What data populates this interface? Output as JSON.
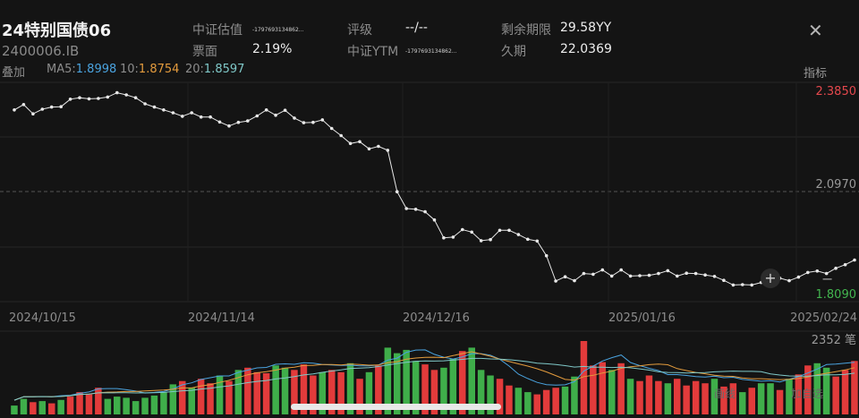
{
  "header": {
    "title": "24特别国债06",
    "code": "2400006.IB",
    "close_icon": "close-icon",
    "fields": [
      {
        "label": "中证估值",
        "value": "-1797693134862..."
      },
      {
        "label": "评级",
        "value": "--/--"
      },
      {
        "label": "剩余期限",
        "value": "29.58YY"
      },
      {
        "label": "票面",
        "value": "2.19%"
      },
      {
        "label": "中证YTM",
        "value": "-1797693134862..."
      },
      {
        "label": "久期",
        "value": "22.0369"
      }
    ]
  },
  "ma_bar": {
    "overlay_label": "叠加",
    "ma5_label": "MA5:",
    "ma5_value": "1.8998",
    "ma10_label": "10:",
    "ma10_value": "1.8754",
    "ma20_label": "20:",
    "ma20_value": "1.8597",
    "indicator_label": "指标"
  },
  "chart_data": {
    "type": "line",
    "ylim": [
      1.809,
      2.385
    ],
    "y_tick_labels": [
      "2.3850",
      "2.0970",
      "1.8090"
    ],
    "x_tick_labels": [
      "2024/10/15",
      "2024/11/14",
      "2024/12/16",
      "2025/01/16",
      "2025/02/24"
    ],
    "values": [
      2.328,
      2.343,
      2.317,
      2.33,
      2.336,
      2.337,
      2.358,
      2.362,
      2.359,
      2.36,
      2.364,
      2.376,
      2.37,
      2.362,
      2.345,
      2.336,
      2.328,
      2.32,
      2.31,
      2.32,
      2.308,
      2.308,
      2.294,
      2.283,
      2.293,
      2.297,
      2.311,
      2.328,
      2.313,
      2.327,
      2.305,
      2.292,
      2.293,
      2.3,
      2.276,
      2.256,
      2.234,
      2.239,
      2.219,
      2.226,
      2.215,
      2.099,
      2.052,
      2.05,
      2.043,
      2.02,
      1.97,
      1.972,
      1.993,
      1.986,
      1.962,
      1.965,
      1.991,
      1.991,
      1.979,
      1.966,
      1.961,
      1.92,
      1.849,
      1.861,
      1.85,
      1.87,
      1.868,
      1.88,
      1.863,
      1.88,
      1.863,
      1.864,
      1.865,
      1.87,
      1.878,
      1.863,
      1.871,
      1.87,
      1.866,
      1.862,
      1.851,
      1.838,
      1.839,
      1.838,
      1.845,
      1.852,
      1.857,
      1.85,
      1.86,
      1.873,
      1.877,
      1.87,
      1.885,
      1.895,
      1.908
    ],
    "volume": {
      "label": "2352 笔",
      "bars": [
        {
          "v": 8,
          "c": "g"
        },
        {
          "v": 14,
          "c": "g"
        },
        {
          "v": 11,
          "c": "r"
        },
        {
          "v": 12,
          "c": "g"
        },
        {
          "v": 10,
          "c": "r"
        },
        {
          "v": 13,
          "c": "g"
        },
        {
          "v": 16,
          "c": "r"
        },
        {
          "v": 20,
          "c": "r"
        },
        {
          "v": 18,
          "c": "r"
        },
        {
          "v": 24,
          "c": "r"
        },
        {
          "v": 14,
          "c": "g"
        },
        {
          "v": 16,
          "c": "g"
        },
        {
          "v": 15,
          "c": "g"
        },
        {
          "v": 12,
          "c": "g"
        },
        {
          "v": 15,
          "c": "g"
        },
        {
          "v": 17,
          "c": "g"
        },
        {
          "v": 20,
          "c": "g"
        },
        {
          "v": 27,
          "c": "g"
        },
        {
          "v": 30,
          "c": "r"
        },
        {
          "v": 24,
          "c": "g"
        },
        {
          "v": 32,
          "c": "r"
        },
        {
          "v": 28,
          "c": "r"
        },
        {
          "v": 35,
          "c": "g"
        },
        {
          "v": 30,
          "c": "r"
        },
        {
          "v": 40,
          "c": "g"
        },
        {
          "v": 42,
          "c": "r"
        },
        {
          "v": 38,
          "c": "r"
        },
        {
          "v": 37,
          "c": "r"
        },
        {
          "v": 44,
          "c": "g"
        },
        {
          "v": 42,
          "c": "g"
        },
        {
          "v": 40,
          "c": "r"
        },
        {
          "v": 45,
          "c": "r"
        },
        {
          "v": 35,
          "c": "r"
        },
        {
          "v": 38,
          "c": "g"
        },
        {
          "v": 40,
          "c": "r"
        },
        {
          "v": 38,
          "c": "r"
        },
        {
          "v": 46,
          "c": "g"
        },
        {
          "v": 32,
          "c": "r"
        },
        {
          "v": 38,
          "c": "g"
        },
        {
          "v": 44,
          "c": "r"
        },
        {
          "v": 60,
          "c": "g"
        },
        {
          "v": 55,
          "c": "g"
        },
        {
          "v": 58,
          "c": "g"
        },
        {
          "v": 48,
          "c": "g"
        },
        {
          "v": 45,
          "c": "r"
        },
        {
          "v": 40,
          "c": "r"
        },
        {
          "v": 42,
          "c": "g"
        },
        {
          "v": 50,
          "c": "g"
        },
        {
          "v": 57,
          "c": "r"
        },
        {
          "v": 60,
          "c": "g"
        },
        {
          "v": 40,
          "c": "g"
        },
        {
          "v": 35,
          "c": "g"
        },
        {
          "v": 32,
          "c": "r"
        },
        {
          "v": 26,
          "c": "r"
        },
        {
          "v": 24,
          "c": "g"
        },
        {
          "v": 20,
          "c": "g"
        },
        {
          "v": 18,
          "c": "r"
        },
        {
          "v": 22,
          "c": "r"
        },
        {
          "v": 24,
          "c": "r"
        },
        {
          "v": 25,
          "c": "g"
        },
        {
          "v": 34,
          "c": "g"
        },
        {
          "v": 66,
          "c": "r"
        },
        {
          "v": 44,
          "c": "r"
        },
        {
          "v": 47,
          "c": "r"
        },
        {
          "v": 40,
          "c": "g"
        },
        {
          "v": 46,
          "c": "r"
        },
        {
          "v": 32,
          "c": "g"
        },
        {
          "v": 30,
          "c": "r"
        },
        {
          "v": 35,
          "c": "r"
        },
        {
          "v": 30,
          "c": "r"
        },
        {
          "v": 28,
          "c": "g"
        },
        {
          "v": 32,
          "c": "r"
        },
        {
          "v": 26,
          "c": "r"
        },
        {
          "v": 30,
          "c": "r"
        },
        {
          "v": 28,
          "c": "r"
        },
        {
          "v": 32,
          "c": "g"
        },
        {
          "v": 25,
          "c": "r"
        },
        {
          "v": 28,
          "c": "r"
        },
        {
          "v": 20,
          "c": "g"
        },
        {
          "v": 24,
          "c": "r"
        },
        {
          "v": 28,
          "c": "g"
        },
        {
          "v": 28,
          "c": "g"
        },
        {
          "v": 22,
          "c": "r"
        },
        {
          "v": 32,
          "c": "g"
        },
        {
          "v": 36,
          "c": "r"
        },
        {
          "v": 44,
          "c": "r"
        },
        {
          "v": 46,
          "c": "g"
        },
        {
          "v": 42,
          "c": "g"
        },
        {
          "v": 34,
          "c": "r"
        },
        {
          "v": 40,
          "c": "r"
        },
        {
          "v": 48,
          "c": "r"
        }
      ],
      "ma_series": [
        {
          "name": "MA5",
          "color": "#4aa3df"
        },
        {
          "name": "MA10",
          "color": "#e39b3d"
        },
        {
          "name": "MA20",
          "color": "#7fc8c8"
        }
      ]
    },
    "colors": {
      "up": "#e23b3b",
      "down": "#3fae4a",
      "line": "#e8e8e8",
      "top_label": "#e5484d",
      "bottom_label": "#43b54f",
      "mid_label": "#9a9a9a"
    }
  },
  "overlay_buttons": {
    "draw": "画线",
    "add": "加自选"
  },
  "zoom": {
    "in": "+",
    "out": "−"
  }
}
